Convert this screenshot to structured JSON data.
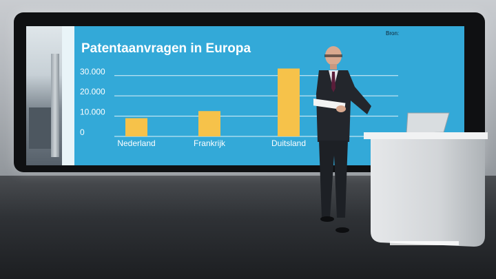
{
  "scene": {
    "screen_color": "#33a9d8",
    "bar_color": "#f6c24a",
    "gridline_color": "#ffffff"
  },
  "screen": {
    "title": "Patentaanvragen in Europa",
    "source_label": "Bron:"
  },
  "chart_data": {
    "type": "bar",
    "title": "Patentaanvragen in Europa",
    "categories": [
      "Nederland",
      "Frankrijk",
      "Duitsland"
    ],
    "values": [
      9000,
      12500,
      33500
    ],
    "y_ticks": [
      0,
      10000,
      20000,
      30000
    ],
    "y_tick_labels": [
      "0",
      "10.000",
      "20.000",
      "30.000"
    ],
    "ylim": [
      0,
      34000
    ],
    "grid": true,
    "xlabel": "",
    "ylabel": ""
  }
}
